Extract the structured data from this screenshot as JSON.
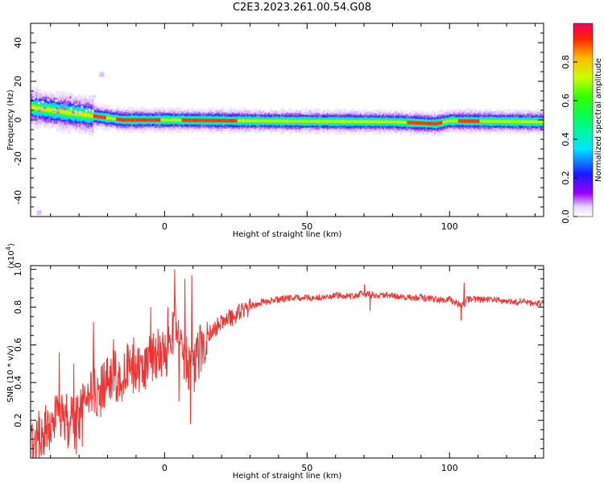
{
  "title": "C2E3.2023.261.00.54.G08",
  "chart_data": [
    {
      "type": "heatmap",
      "xlabel": "Height of straight line (km)",
      "ylabel": "Frequency (Hz)",
      "xlim": [
        -47,
        133
      ],
      "ylim": [
        -50,
        50
      ],
      "xticks": [
        0,
        50,
        100
      ],
      "yticks": [
        -40,
        -20,
        0,
        20,
        40
      ],
      "colorbar": {
        "label": "Normalized spectral amplitude",
        "range": [
          0,
          1
        ],
        "ticks": [
          0.0,
          0.2,
          0.4,
          0.6,
          0.8
        ],
        "tick_labels": [
          "0.0",
          "0.2",
          "0.4",
          "0.6",
          "0.8"
        ]
      },
      "ridge": [
        {
          "x": -47,
          "f": 6.5
        },
        {
          "x": -40,
          "f": 5.0
        },
        {
          "x": -35,
          "f": 4.0
        },
        {
          "x": -30,
          "f": 3.0
        },
        {
          "x": -25,
          "f": 2.0
        },
        {
          "x": -20,
          "f": 1.0
        },
        {
          "x": -15,
          "f": 0.0
        },
        {
          "x": 0,
          "f": 0.0
        },
        {
          "x": 30,
          "f": -0.5
        },
        {
          "x": 60,
          "f": -0.8
        },
        {
          "x": 80,
          "f": -1.0
        },
        {
          "x": 95,
          "f": -2.0
        },
        {
          "x": 100,
          "f": -0.5
        },
        {
          "x": 133,
          "f": -1.0
        }
      ],
      "hot_spans": [
        [
          -17,
          -2
        ],
        [
          6,
          25
        ],
        [
          85,
          97
        ],
        [
          103,
          110
        ],
        [
          -25,
          -21
        ]
      ],
      "scattered_points": [
        {
          "x": -22,
          "f": 23.5
        },
        {
          "x": -44,
          "f": -48
        }
      ]
    },
    {
      "type": "line",
      "xlabel": "Height of straight line (km)",
      "ylabel": "SNR (10 * v/v)",
      "y_multiplier": "(x10",
      "y_multiplier_exponent": "4",
      "xlim": [
        -47,
        133
      ],
      "ylim": [
        0,
        1.02
      ],
      "xticks": [
        0,
        50,
        100
      ],
      "yticks": [
        0.2,
        0.4,
        0.6,
        0.8,
        1.0
      ],
      "ytick_labels": [
        "0.2",
        "0.4",
        "0.6",
        "0.8",
        "1.0"
      ],
      "series": [
        {
          "color": "#ee3333",
          "x": [
            -47,
            -44,
            -41,
            -38,
            -35,
            -32,
            -30,
            -28,
            -25,
            -22,
            -19,
            -16,
            -13,
            -10,
            -7,
            -4,
            -2,
            0,
            2,
            4,
            6,
            8,
            10,
            13,
            16,
            20,
            25,
            30,
            35,
            40,
            45,
            50,
            55,
            60,
            65,
            70,
            75,
            80,
            85,
            90,
            95,
            100,
            104,
            105,
            106,
            110,
            115,
            120,
            125,
            130,
            133
          ],
          "y": [
            0.08,
            0.12,
            0.16,
            0.2,
            0.22,
            0.18,
            0.2,
            0.3,
            0.33,
            0.36,
            0.42,
            0.44,
            0.47,
            0.47,
            0.5,
            0.53,
            0.56,
            0.55,
            0.6,
            0.75,
            0.58,
            0.52,
            0.45,
            0.6,
            0.66,
            0.72,
            0.76,
            0.8,
            0.83,
            0.84,
            0.85,
            0.85,
            0.85,
            0.86,
            0.86,
            0.87,
            0.86,
            0.86,
            0.85,
            0.85,
            0.84,
            0.84,
            0.81,
            0.81,
            0.84,
            0.84,
            0.84,
            0.83,
            0.83,
            0.82,
            0.82
          ],
          "spikes": [
            {
              "x": -42,
              "y": 0.06
            },
            {
              "x": -37,
              "y": 0.56
            },
            {
              "x": -34,
              "y": 0.05
            },
            {
              "x": -32,
              "y": 0.5
            },
            {
              "x": -31,
              "y": 0.02
            },
            {
              "x": -29,
              "y": 0.06
            },
            {
              "x": -25,
              "y": 0.72
            },
            {
              "x": -21,
              "y": 0.34
            },
            {
              "x": -18,
              "y": 0.63
            },
            {
              "x": -15,
              "y": 0.3
            },
            {
              "x": -11,
              "y": 0.64
            },
            {
              "x": -8,
              "y": 0.4
            },
            {
              "x": -5,
              "y": 0.8
            },
            {
              "x": -3,
              "y": 0.42
            },
            {
              "x": 1,
              "y": 0.8
            },
            {
              "x": 3.5,
              "y": 1.0
            },
            {
              "x": 5,
              "y": 0.3
            },
            {
              "x": 7,
              "y": 0.95
            },
            {
              "x": 9,
              "y": 0.18
            },
            {
              "x": 9.5,
              "y": 0.97
            },
            {
              "x": 12,
              "y": 0.42
            },
            {
              "x": 70,
              "y": 0.92
            },
            {
              "x": 72,
              "y": 0.78
            },
            {
              "x": 104,
              "y": 0.73
            },
            {
              "x": 105,
              "y": 0.93
            }
          ]
        }
      ]
    }
  ]
}
